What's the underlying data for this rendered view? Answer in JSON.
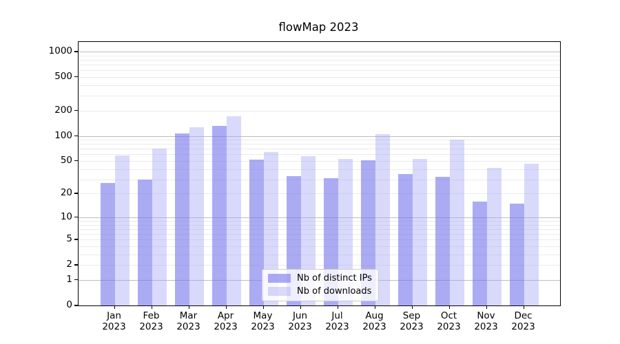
{
  "chart_data": {
    "type": "bar",
    "title": "flowMap 2023",
    "categories": [
      "Jan 2023",
      "Feb 2023",
      "Mar 2023",
      "Apr 2023",
      "May 2023",
      "Jun 2023",
      "Jul 2023",
      "Aug 2023",
      "Sep 2023",
      "Oct 2023",
      "Nov 2023",
      "Dec 2023"
    ],
    "series": [
      {
        "name": "Nb of distinct IPs",
        "color": "rgba(119,119,238,0.62)",
        "values": [
          27,
          30,
          107,
          131,
          52,
          33,
          31,
          51,
          35,
          32,
          16,
          15
        ]
      },
      {
        "name": "Nb of downloads",
        "color": "rgba(165,165,245,0.42)",
        "values": [
          58,
          71,
          126,
          173,
          64,
          57,
          53,
          105,
          53,
          90,
          41,
          46
        ]
      }
    ],
    "xlabel": "",
    "ylabel": "",
    "y_axis": {
      "scale": "log1p",
      "ticks": [
        0,
        1,
        2,
        5,
        10,
        20,
        50,
        100,
        200,
        500,
        1000
      ],
      "max": 1300,
      "major_gridlines": [
        1,
        10,
        100,
        1000
      ],
      "minor_gridline_multipliers": [
        2,
        3,
        4,
        5,
        6,
        7,
        8,
        9
      ]
    },
    "grid": {
      "major_color": "#bcbcbc",
      "minor_color": "#ebebeb"
    },
    "legend": {
      "position": "lower center",
      "background": "rgba(255,255,255,0.8)",
      "border_color": "#cccccc"
    }
  }
}
